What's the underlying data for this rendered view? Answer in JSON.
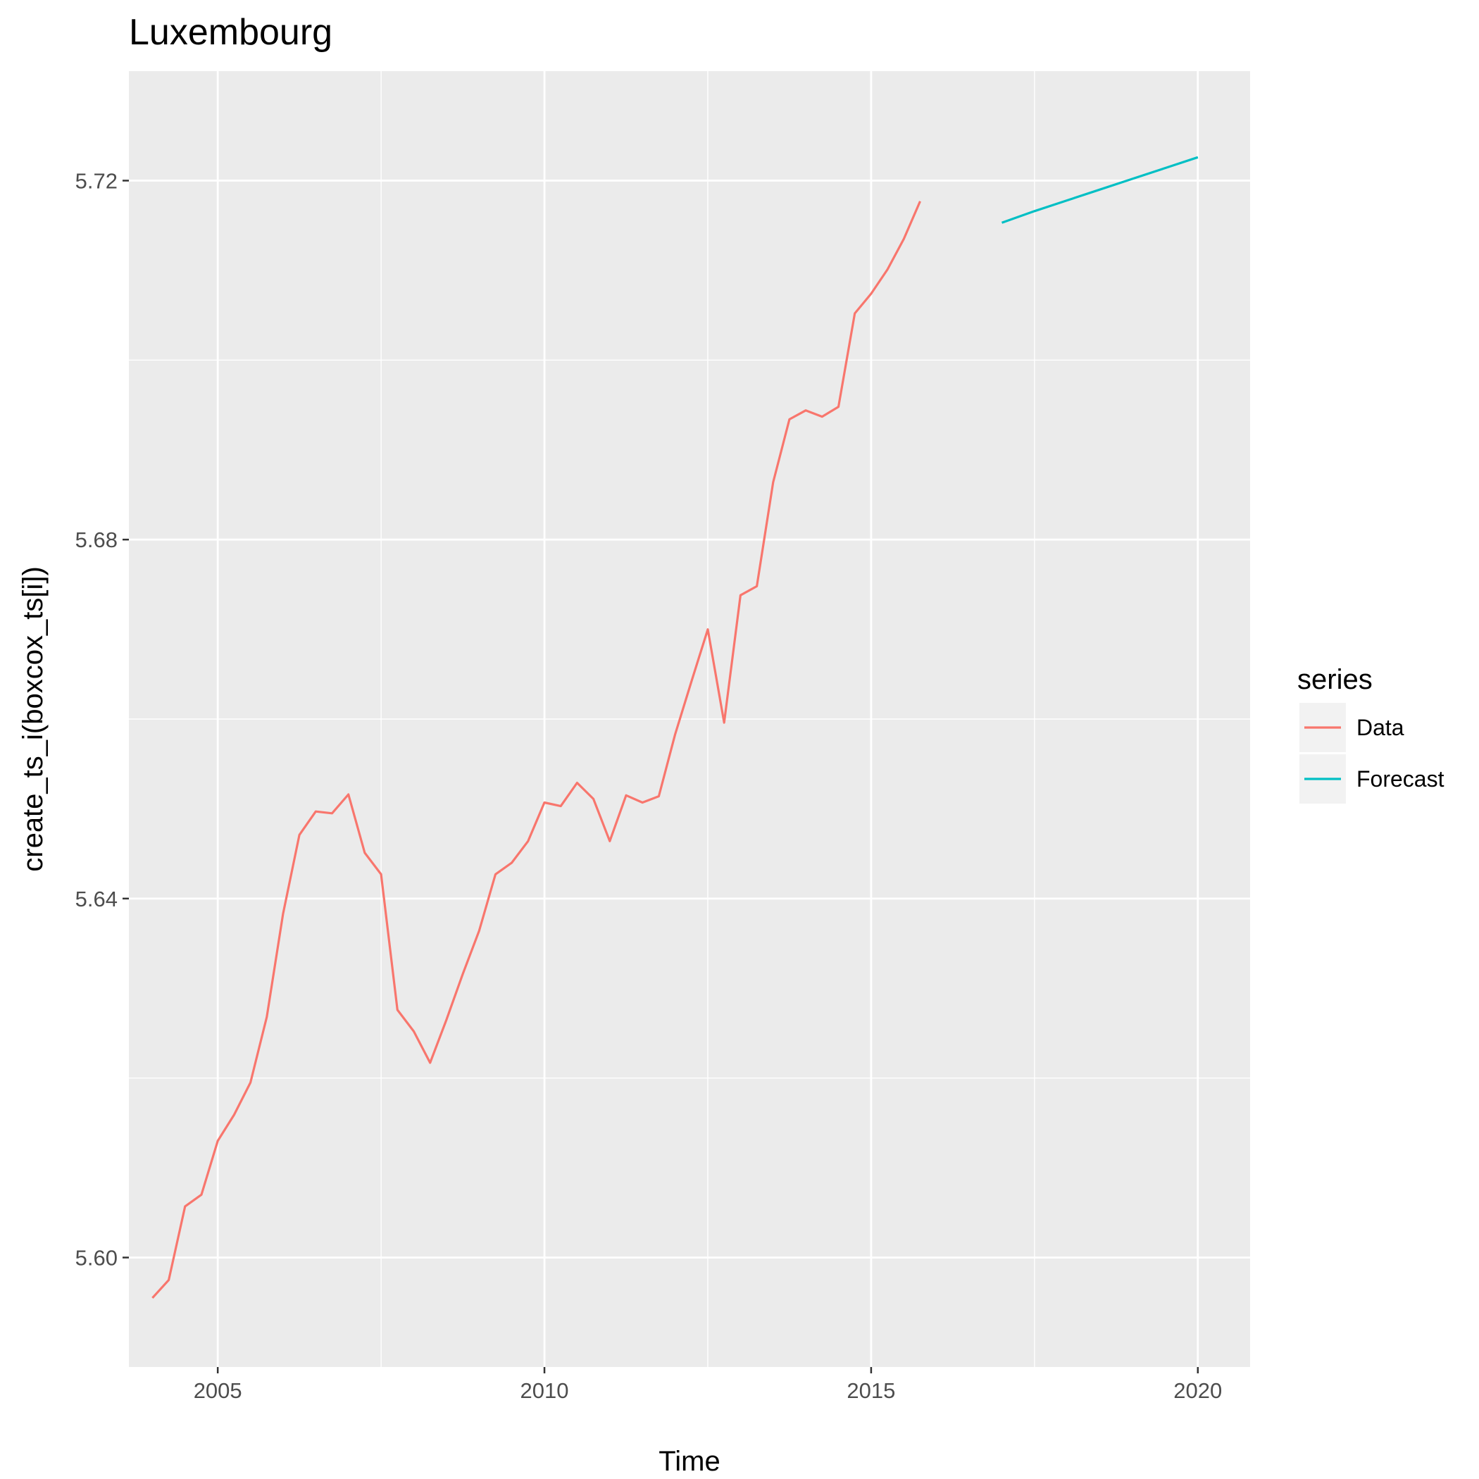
{
  "chart_data": {
    "type": "line",
    "title": "Luxembourg",
    "xlabel": "Time",
    "ylabel": "create_ts_i(boxcox_ts[i])",
    "xlim": [
      2003.64,
      2020.8
    ],
    "ylim": [
      5.5878,
      5.7322
    ],
    "x_ticks": [
      2005,
      2010,
      2015,
      2020
    ],
    "x_tick_labels": [
      "2005",
      "2010",
      "2015",
      "2020"
    ],
    "y_ticks": [
      5.6,
      5.64,
      5.68,
      5.72
    ],
    "y_tick_labels": [
      "5.60",
      "5.64",
      "5.68",
      "5.72"
    ],
    "grid": true,
    "legend": {
      "title": "series",
      "position": "right"
    },
    "series": [
      {
        "name": "Data",
        "color": "#F8766D",
        "points": [
          [
            2004.0,
            5.5955
          ],
          [
            2004.25,
            5.5975
          ],
          [
            2004.5,
            5.6057
          ],
          [
            2004.75,
            5.607
          ],
          [
            2005.0,
            5.613
          ],
          [
            2005.25,
            5.6159
          ],
          [
            2005.5,
            5.6195
          ],
          [
            2005.75,
            5.6268
          ],
          [
            2006.0,
            5.6383
          ],
          [
            2006.25,
            5.6471
          ],
          [
            2006.5,
            5.6497
          ],
          [
            2006.75,
            5.6495
          ],
          [
            2007.0,
            5.6516
          ],
          [
            2007.25,
            5.6451
          ],
          [
            2007.5,
            5.6427
          ],
          [
            2007.75,
            5.6276
          ],
          [
            2008.0,
            5.6252
          ],
          [
            2008.25,
            5.6217
          ],
          [
            2008.5,
            5.6265
          ],
          [
            2008.75,
            5.6316
          ],
          [
            2009.0,
            5.6364
          ],
          [
            2009.25,
            5.6427
          ],
          [
            2009.5,
            5.644
          ],
          [
            2009.75,
            5.6464
          ],
          [
            2010.0,
            5.6507
          ],
          [
            2010.25,
            5.6503
          ],
          [
            2010.5,
            5.6529
          ],
          [
            2010.75,
            5.6511
          ],
          [
            2011.0,
            5.6464
          ],
          [
            2011.25,
            5.6515
          ],
          [
            2011.5,
            5.6507
          ],
          [
            2011.75,
            5.6514
          ],
          [
            2012.0,
            5.6583
          ],
          [
            2012.25,
            5.6642
          ],
          [
            2012.5,
            5.67
          ],
          [
            2012.75,
            5.6596
          ],
          [
            2013.0,
            5.6738
          ],
          [
            2013.25,
            5.6748
          ],
          [
            2013.5,
            5.6864
          ],
          [
            2013.75,
            5.6934
          ],
          [
            2014.0,
            5.6944
          ],
          [
            2014.25,
            5.6937
          ],
          [
            2014.5,
            5.6948
          ],
          [
            2014.75,
            5.7052
          ],
          [
            2015.0,
            5.7074
          ],
          [
            2015.25,
            5.7101
          ],
          [
            2015.5,
            5.7135
          ],
          [
            2015.75,
            5.7177
          ]
        ]
      },
      {
        "name": "Forecast",
        "color": "#00BFC4",
        "points": [
          [
            2017.0,
            5.7153
          ],
          [
            2017.5,
            5.7166
          ],
          [
            2018.0,
            5.7178
          ],
          [
            2018.5,
            5.719
          ],
          [
            2019.0,
            5.7202
          ],
          [
            2019.5,
            5.7214
          ],
          [
            2020.0,
            5.7226
          ]
        ]
      }
    ]
  }
}
